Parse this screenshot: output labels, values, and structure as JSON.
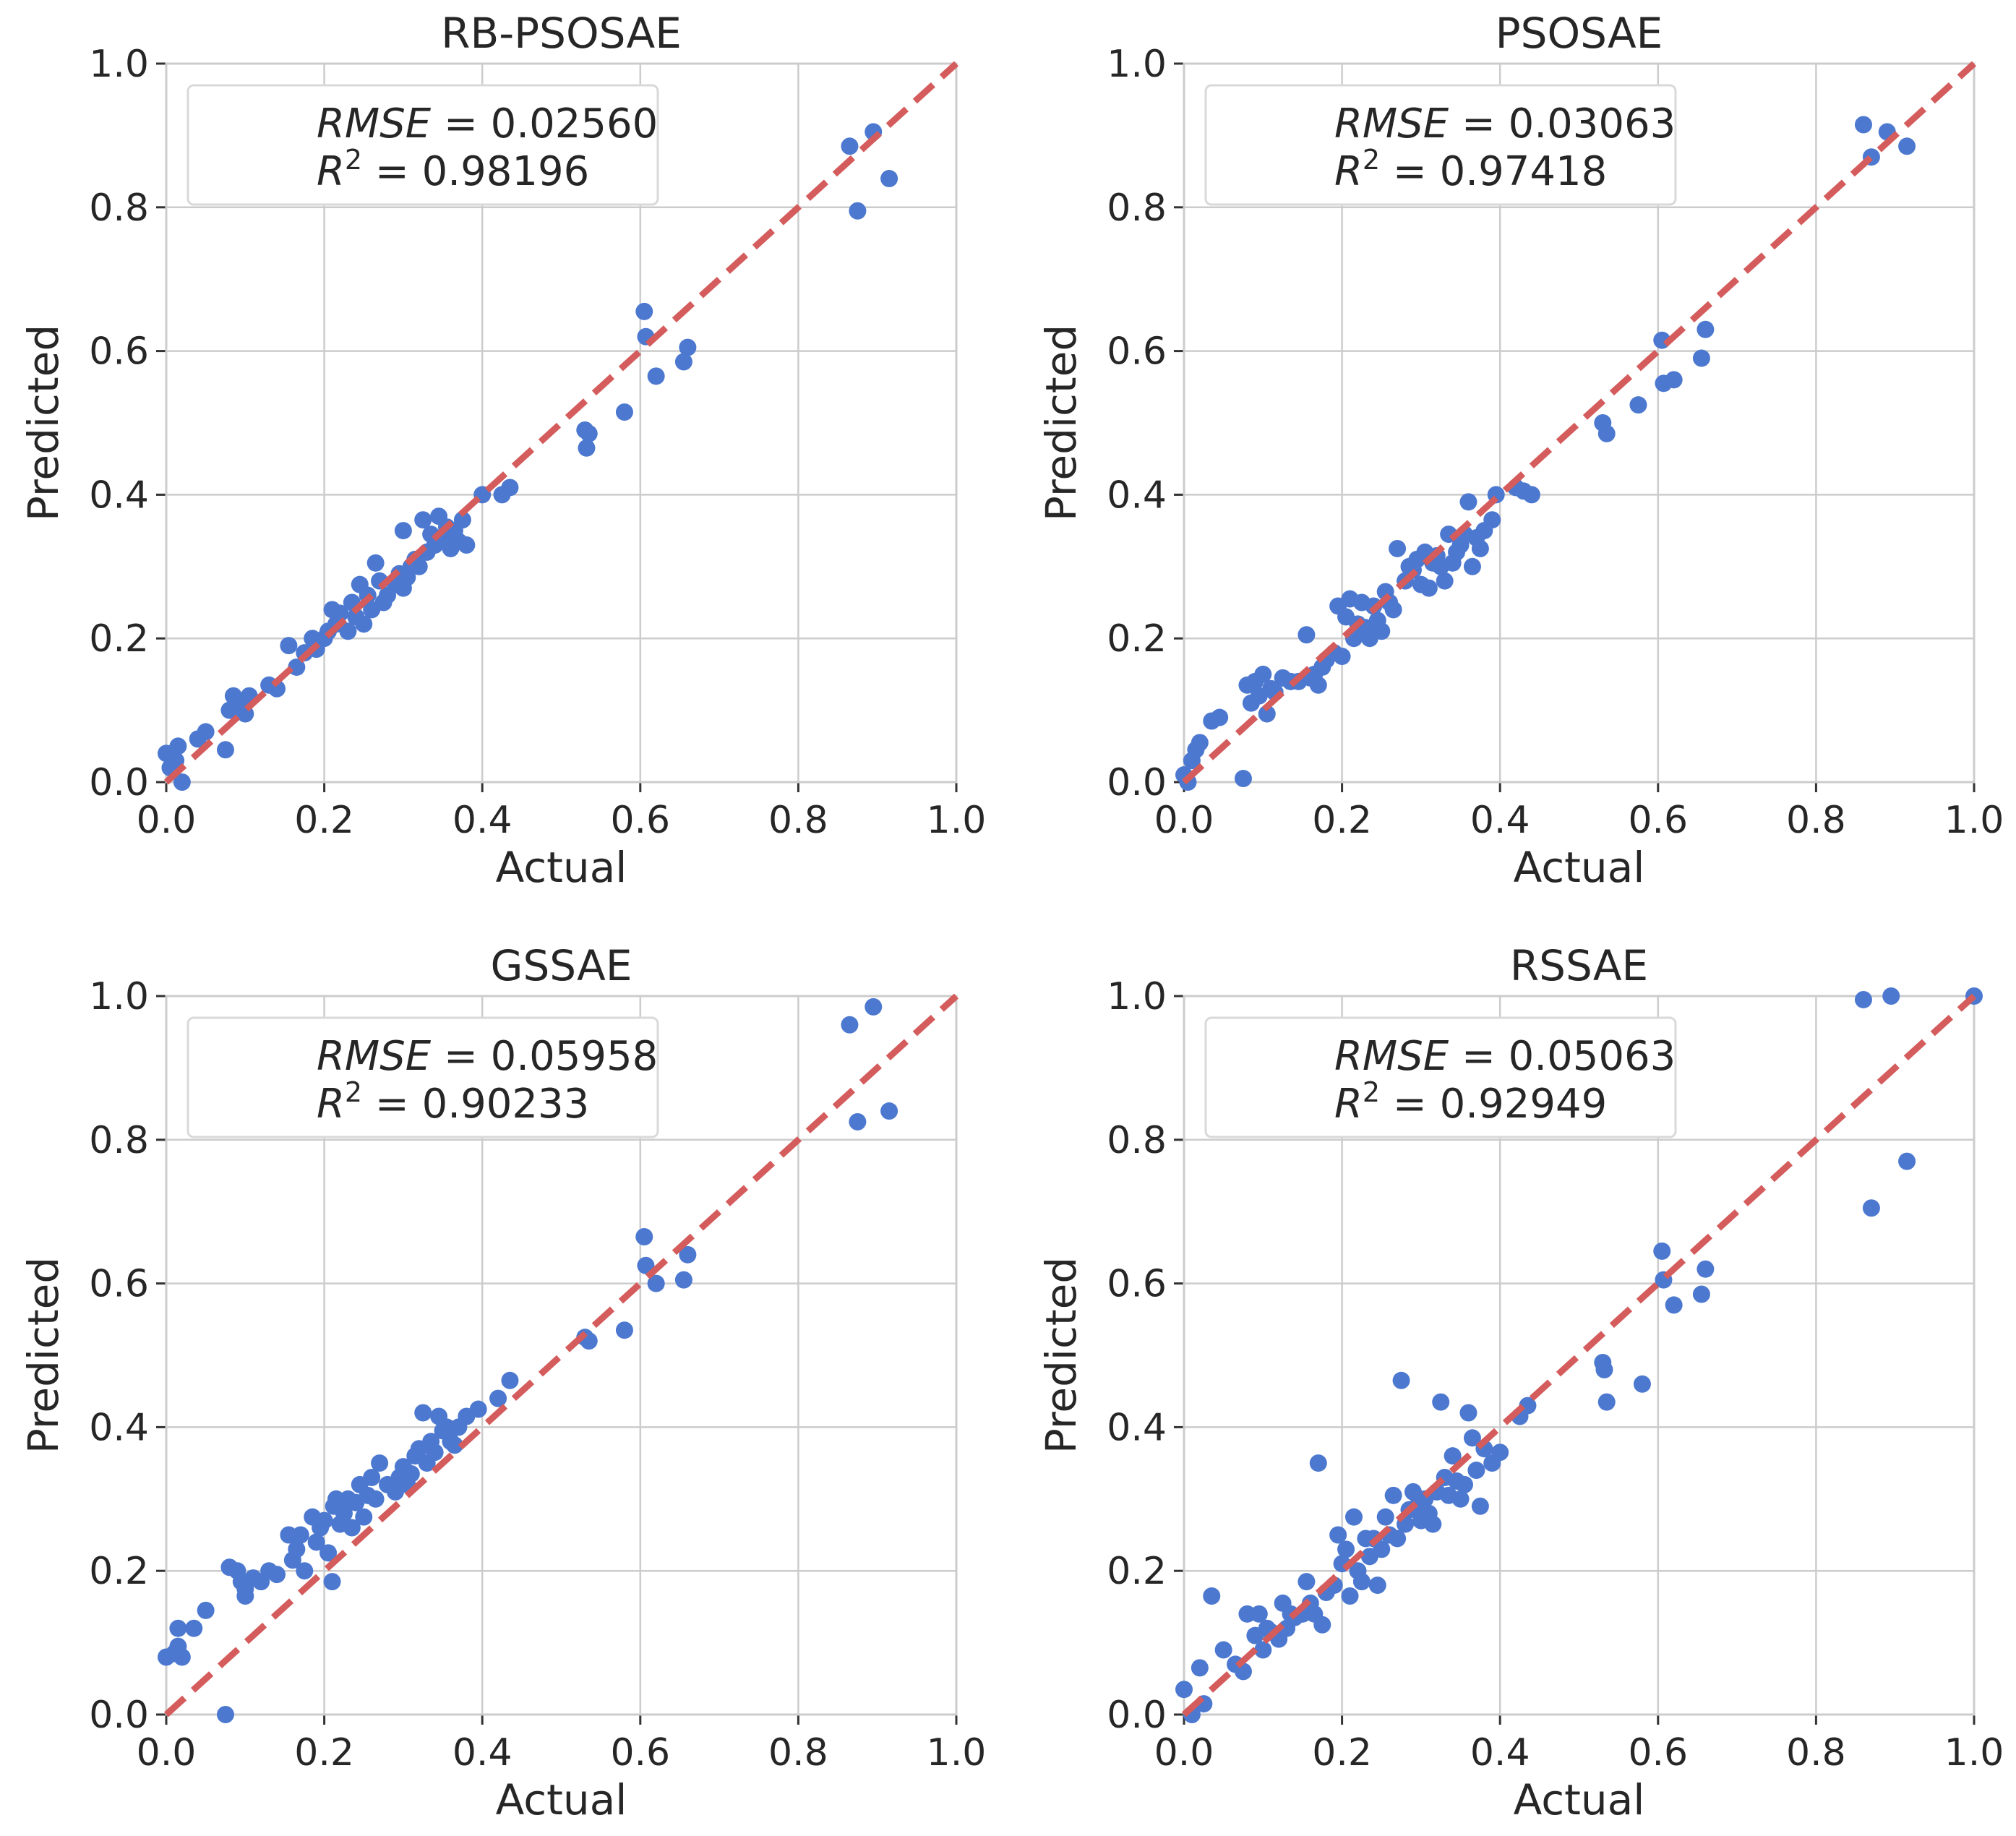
{
  "colors": {
    "points": "#4C78D0",
    "ideal_line": "#D45C5C"
  },
  "chart_data": [
    {
      "type": "scatter",
      "title": "RB-PSOSAE",
      "xlabel": "Actual",
      "ylabel": "Predicted",
      "xlim": [
        0.0,
        1.0
      ],
      "ylim": [
        0.0,
        1.0
      ],
      "xticks": [
        "0.0",
        "0.2",
        "0.4",
        "0.6",
        "0.8",
        "1.0"
      ],
      "yticks": [
        "0.0",
        "0.2",
        "0.4",
        "0.6",
        "0.8",
        "1.0"
      ],
      "grid": true,
      "reference_line": "y = x",
      "legend_position": "top-left",
      "stats": {
        "rmse_label": "RMSE",
        "rmse_value": "0.02560",
        "r2_label": "R",
        "r2_exp": "2",
        "r2_value": "0.98196",
        "equals": "="
      },
      "points": [
        [
          0.0,
          0.04
        ],
        [
          0.005,
          0.02
        ],
        [
          0.012,
          0.03
        ],
        [
          0.015,
          0.05
        ],
        [
          0.02,
          0.0
        ],
        [
          0.04,
          0.06
        ],
        [
          0.05,
          0.07
        ],
        [
          0.075,
          0.045
        ],
        [
          0.08,
          0.1
        ],
        [
          0.085,
          0.12
        ],
        [
          0.095,
          0.11
        ],
        [
          0.1,
          0.095
        ],
        [
          0.105,
          0.12
        ],
        [
          0.13,
          0.135
        ],
        [
          0.14,
          0.13
        ],
        [
          0.155,
          0.19
        ],
        [
          0.165,
          0.16
        ],
        [
          0.175,
          0.18
        ],
        [
          0.185,
          0.2
        ],
        [
          0.19,
          0.185
        ],
        [
          0.2,
          0.2
        ],
        [
          0.205,
          0.21
        ],
        [
          0.21,
          0.24
        ],
        [
          0.215,
          0.22
        ],
        [
          0.22,
          0.235
        ],
        [
          0.23,
          0.21
        ],
        [
          0.235,
          0.25
        ],
        [
          0.24,
          0.23
        ],
        [
          0.245,
          0.275
        ],
        [
          0.25,
          0.22
        ],
        [
          0.255,
          0.26
        ],
        [
          0.26,
          0.24
        ],
        [
          0.265,
          0.305
        ],
        [
          0.27,
          0.28
        ],
        [
          0.275,
          0.25
        ],
        [
          0.28,
          0.26
        ],
        [
          0.29,
          0.275
        ],
        [
          0.295,
          0.29
        ],
        [
          0.3,
          0.27
        ],
        [
          0.3,
          0.35
        ],
        [
          0.305,
          0.285
        ],
        [
          0.31,
          0.3
        ],
        [
          0.315,
          0.31
        ],
        [
          0.32,
          0.3
        ],
        [
          0.325,
          0.365
        ],
        [
          0.33,
          0.32
        ],
        [
          0.335,
          0.345
        ],
        [
          0.34,
          0.33
        ],
        [
          0.345,
          0.37
        ],
        [
          0.35,
          0.34
        ],
        [
          0.355,
          0.355
        ],
        [
          0.36,
          0.325
        ],
        [
          0.365,
          0.35
        ],
        [
          0.37,
          0.335
        ],
        [
          0.375,
          0.365
        ],
        [
          0.38,
          0.33
        ],
        [
          0.4,
          0.4
        ],
        [
          0.425,
          0.4
        ],
        [
          0.435,
          0.41
        ],
        [
          0.53,
          0.49
        ],
        [
          0.532,
          0.465
        ],
        [
          0.535,
          0.485
        ],
        [
          0.58,
          0.515
        ],
        [
          0.605,
          0.655
        ],
        [
          0.607,
          0.62
        ],
        [
          0.62,
          0.565
        ],
        [
          0.655,
          0.585
        ],
        [
          0.66,
          0.605
        ],
        [
          0.865,
          0.885
        ],
        [
          0.875,
          0.795
        ],
        [
          0.895,
          0.905
        ],
        [
          0.915,
          0.84
        ]
      ]
    },
    {
      "type": "scatter",
      "title": "PSOSAE",
      "xlabel": "Actual",
      "ylabel": "Predicted",
      "xlim": [
        0.0,
        1.0
      ],
      "ylim": [
        0.0,
        1.0
      ],
      "xticks": [
        "0.0",
        "0.2",
        "0.4",
        "0.6",
        "0.8",
        "1.0"
      ],
      "yticks": [
        "0.0",
        "0.2",
        "0.4",
        "0.6",
        "0.8",
        "1.0"
      ],
      "grid": true,
      "reference_line": "y = x",
      "legend_position": "top-left",
      "stats": {
        "rmse_label": "RMSE",
        "rmse_value": "0.03063",
        "r2_label": "R",
        "r2_exp": "2",
        "r2_value": "0.97418",
        "equals": "="
      },
      "points": [
        [
          0.0,
          0.01
        ],
        [
          0.005,
          0.0
        ],
        [
          0.01,
          0.03
        ],
        [
          0.015,
          0.045
        ],
        [
          0.02,
          0.055
        ],
        [
          0.035,
          0.085
        ],
        [
          0.045,
          0.09
        ],
        [
          0.075,
          0.005
        ],
        [
          0.08,
          0.135
        ],
        [
          0.085,
          0.11
        ],
        [
          0.09,
          0.14
        ],
        [
          0.095,
          0.12
        ],
        [
          0.1,
          0.15
        ],
        [
          0.105,
          0.095
        ],
        [
          0.11,
          0.13
        ],
        [
          0.115,
          0.125
        ],
        [
          0.125,
          0.145
        ],
        [
          0.135,
          0.14
        ],
        [
          0.145,
          0.14
        ],
        [
          0.155,
          0.205
        ],
        [
          0.16,
          0.145
        ],
        [
          0.165,
          0.15
        ],
        [
          0.17,
          0.135
        ],
        [
          0.175,
          0.16
        ],
        [
          0.18,
          0.17
        ],
        [
          0.19,
          0.18
        ],
        [
          0.195,
          0.245
        ],
        [
          0.2,
          0.175
        ],
        [
          0.205,
          0.23
        ],
        [
          0.21,
          0.255
        ],
        [
          0.215,
          0.2
        ],
        [
          0.22,
          0.22
        ],
        [
          0.225,
          0.25
        ],
        [
          0.23,
          0.215
        ],
        [
          0.235,
          0.2
        ],
        [
          0.24,
          0.245
        ],
        [
          0.245,
          0.225
        ],
        [
          0.25,
          0.21
        ],
        [
          0.255,
          0.265
        ],
        [
          0.26,
          0.25
        ],
        [
          0.265,
          0.24
        ],
        [
          0.27,
          0.325
        ],
        [
          0.28,
          0.28
        ],
        [
          0.285,
          0.3
        ],
        [
          0.29,
          0.295
        ],
        [
          0.295,
          0.31
        ],
        [
          0.3,
          0.275
        ],
        [
          0.305,
          0.32
        ],
        [
          0.31,
          0.27
        ],
        [
          0.315,
          0.305
        ],
        [
          0.32,
          0.315
        ],
        [
          0.325,
          0.3
        ],
        [
          0.33,
          0.28
        ],
        [
          0.335,
          0.345
        ],
        [
          0.34,
          0.305
        ],
        [
          0.345,
          0.32
        ],
        [
          0.35,
          0.33
        ],
        [
          0.355,
          0.345
        ],
        [
          0.36,
          0.39
        ],
        [
          0.365,
          0.3
        ],
        [
          0.37,
          0.34
        ],
        [
          0.375,
          0.325
        ],
        [
          0.38,
          0.35
        ],
        [
          0.39,
          0.365
        ],
        [
          0.395,
          0.4
        ],
        [
          0.42,
          0.41
        ],
        [
          0.43,
          0.405
        ],
        [
          0.44,
          0.4
        ],
        [
          0.53,
          0.5
        ],
        [
          0.535,
          0.485
        ],
        [
          0.575,
          0.525
        ],
        [
          0.605,
          0.615
        ],
        [
          0.607,
          0.555
        ],
        [
          0.62,
          0.56
        ],
        [
          0.655,
          0.59
        ],
        [
          0.66,
          0.63
        ],
        [
          0.86,
          0.915
        ],
        [
          0.87,
          0.87
        ],
        [
          0.89,
          0.905
        ],
        [
          0.915,
          0.885
        ]
      ]
    },
    {
      "type": "scatter",
      "title": "GSSAE",
      "xlabel": "Actual",
      "ylabel": "Predicted",
      "xlim": [
        0.0,
        1.0
      ],
      "ylim": [
        0.0,
        1.0
      ],
      "xticks": [
        "0.0",
        "0.2",
        "0.4",
        "0.6",
        "0.8",
        "1.0"
      ],
      "yticks": [
        "0.0",
        "0.2",
        "0.4",
        "0.6",
        "0.8",
        "1.0"
      ],
      "grid": true,
      "reference_line": "y = x",
      "legend_position": "top-left",
      "stats": {
        "rmse_label": "RMSE",
        "rmse_value": "0.05958",
        "r2_label": "R",
        "r2_exp": "2",
        "r2_value": "0.90233",
        "equals": "="
      },
      "points": [
        [
          0.0,
          0.08
        ],
        [
          0.01,
          0.085
        ],
        [
          0.015,
          0.12
        ],
        [
          0.015,
          0.095
        ],
        [
          0.02,
          0.08
        ],
        [
          0.035,
          0.12
        ],
        [
          0.05,
          0.145
        ],
        [
          0.075,
          0.0
        ],
        [
          0.08,
          0.205
        ],
        [
          0.09,
          0.2
        ],
        [
          0.095,
          0.185
        ],
        [
          0.1,
          0.165
        ],
        [
          0.1,
          0.175
        ],
        [
          0.11,
          0.19
        ],
        [
          0.12,
          0.185
        ],
        [
          0.13,
          0.2
        ],
        [
          0.14,
          0.195
        ],
        [
          0.155,
          0.25
        ],
        [
          0.16,
          0.215
        ],
        [
          0.165,
          0.23
        ],
        [
          0.17,
          0.25
        ],
        [
          0.175,
          0.2
        ],
        [
          0.185,
          0.275
        ],
        [
          0.19,
          0.24
        ],
        [
          0.195,
          0.26
        ],
        [
          0.2,
          0.27
        ],
        [
          0.205,
          0.225
        ],
        [
          0.21,
          0.185
        ],
        [
          0.212,
          0.29
        ],
        [
          0.215,
          0.3
        ],
        [
          0.22,
          0.265
        ],
        [
          0.225,
          0.28
        ],
        [
          0.23,
          0.3
        ],
        [
          0.235,
          0.26
        ],
        [
          0.24,
          0.295
        ],
        [
          0.245,
          0.32
        ],
        [
          0.25,
          0.275
        ],
        [
          0.255,
          0.305
        ],
        [
          0.26,
          0.33
        ],
        [
          0.265,
          0.3
        ],
        [
          0.27,
          0.35
        ],
        [
          0.28,
          0.32
        ],
        [
          0.29,
          0.31
        ],
        [
          0.295,
          0.33
        ],
        [
          0.3,
          0.345
        ],
        [
          0.305,
          0.32
        ],
        [
          0.31,
          0.335
        ],
        [
          0.315,
          0.36
        ],
        [
          0.32,
          0.37
        ],
        [
          0.325,
          0.42
        ],
        [
          0.33,
          0.35
        ],
        [
          0.335,
          0.38
        ],
        [
          0.34,
          0.365
        ],
        [
          0.345,
          0.415
        ],
        [
          0.35,
          0.395
        ],
        [
          0.355,
          0.4
        ],
        [
          0.36,
          0.38
        ],
        [
          0.365,
          0.375
        ],
        [
          0.37,
          0.4
        ],
        [
          0.38,
          0.415
        ],
        [
          0.395,
          0.425
        ],
        [
          0.42,
          0.44
        ],
        [
          0.435,
          0.465
        ],
        [
          0.53,
          0.525
        ],
        [
          0.535,
          0.52
        ],
        [
          0.58,
          0.535
        ],
        [
          0.605,
          0.665
        ],
        [
          0.607,
          0.625
        ],
        [
          0.62,
          0.6
        ],
        [
          0.655,
          0.605
        ],
        [
          0.66,
          0.64
        ],
        [
          0.865,
          0.96
        ],
        [
          0.875,
          0.825
        ],
        [
          0.895,
          0.985
        ],
        [
          0.915,
          0.84
        ]
      ]
    },
    {
      "type": "scatter",
      "title": "RSSAE",
      "xlabel": "Actual",
      "ylabel": "Predicted",
      "xlim": [
        0.0,
        1.0
      ],
      "ylim": [
        0.0,
        1.0
      ],
      "xticks": [
        "0.0",
        "0.2",
        "0.4",
        "0.6",
        "0.8",
        "1.0"
      ],
      "yticks": [
        "0.0",
        "0.2",
        "0.4",
        "0.6",
        "0.8",
        "1.0"
      ],
      "grid": true,
      "reference_line": "y = x",
      "legend_position": "top-left",
      "stats": {
        "rmse_label": "RMSE",
        "rmse_value": "0.05063",
        "r2_label": "R",
        "r2_exp": "2",
        "r2_value": "0.92949",
        "equals": "="
      },
      "points": [
        [
          0.0,
          0.035
        ],
        [
          0.01,
          0.0
        ],
        [
          0.02,
          0.065
        ],
        [
          0.025,
          0.015
        ],
        [
          0.035,
          0.165
        ],
        [
          0.05,
          0.09
        ],
        [
          0.065,
          0.07
        ],
        [
          0.075,
          0.06
        ],
        [
          0.08,
          0.14
        ],
        [
          0.09,
          0.11
        ],
        [
          0.095,
          0.14
        ],
        [
          0.1,
          0.09
        ],
        [
          0.105,
          0.12
        ],
        [
          0.11,
          0.115
        ],
        [
          0.12,
          0.105
        ],
        [
          0.125,
          0.155
        ],
        [
          0.13,
          0.12
        ],
        [
          0.135,
          0.14
        ],
        [
          0.14,
          0.135
        ],
        [
          0.15,
          0.14
        ],
        [
          0.155,
          0.185
        ],
        [
          0.16,
          0.155
        ],
        [
          0.165,
          0.14
        ],
        [
          0.17,
          0.35
        ],
        [
          0.175,
          0.125
        ],
        [
          0.18,
          0.17
        ],
        [
          0.19,
          0.18
        ],
        [
          0.195,
          0.25
        ],
        [
          0.2,
          0.21
        ],
        [
          0.205,
          0.23
        ],
        [
          0.21,
          0.165
        ],
        [
          0.215,
          0.275
        ],
        [
          0.22,
          0.2
        ],
        [
          0.225,
          0.185
        ],
        [
          0.23,
          0.245
        ],
        [
          0.235,
          0.22
        ],
        [
          0.24,
          0.245
        ],
        [
          0.245,
          0.18
        ],
        [
          0.25,
          0.23
        ],
        [
          0.255,
          0.275
        ],
        [
          0.26,
          0.25
        ],
        [
          0.265,
          0.305
        ],
        [
          0.27,
          0.245
        ],
        [
          0.275,
          0.465
        ],
        [
          0.28,
          0.265
        ],
        [
          0.285,
          0.285
        ],
        [
          0.29,
          0.31
        ],
        [
          0.295,
          0.29
        ],
        [
          0.3,
          0.27
        ],
        [
          0.305,
          0.3
        ],
        [
          0.31,
          0.28
        ],
        [
          0.315,
          0.265
        ],
        [
          0.32,
          0.31
        ],
        [
          0.325,
          0.435
        ],
        [
          0.33,
          0.33
        ],
        [
          0.335,
          0.305
        ],
        [
          0.34,
          0.36
        ],
        [
          0.345,
          0.325
        ],
        [
          0.35,
          0.3
        ],
        [
          0.355,
          0.32
        ],
        [
          0.36,
          0.42
        ],
        [
          0.365,
          0.385
        ],
        [
          0.37,
          0.34
        ],
        [
          0.375,
          0.29
        ],
        [
          0.38,
          0.37
        ],
        [
          0.39,
          0.35
        ],
        [
          0.4,
          0.365
        ],
        [
          0.425,
          0.415
        ],
        [
          0.435,
          0.43
        ],
        [
          0.53,
          0.49
        ],
        [
          0.532,
          0.48
        ],
        [
          0.535,
          0.435
        ],
        [
          0.58,
          0.46
        ],
        [
          0.605,
          0.645
        ],
        [
          0.607,
          0.605
        ],
        [
          0.62,
          0.57
        ],
        [
          0.655,
          0.585
        ],
        [
          0.66,
          0.62
        ],
        [
          0.86,
          0.995
        ],
        [
          0.87,
          0.705
        ],
        [
          0.895,
          1.0
        ],
        [
          0.915,
          0.77
        ],
        [
          1.0,
          1.0
        ]
      ]
    }
  ]
}
